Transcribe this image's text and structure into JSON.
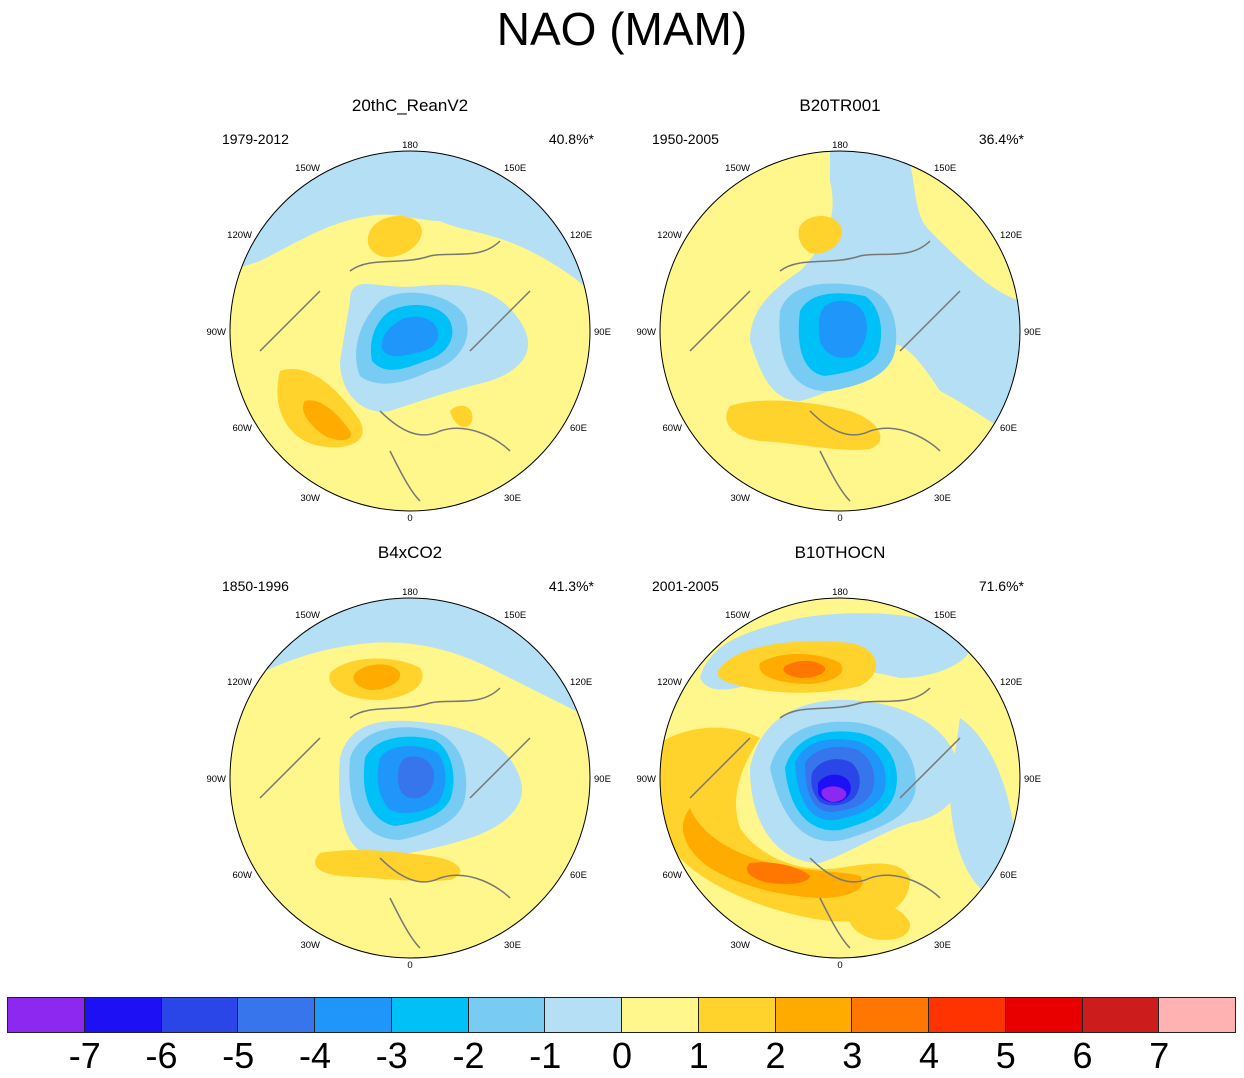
{
  "title": "NAO (MAM)",
  "panels": [
    {
      "name": "20thC_ReanV2",
      "years": "1979-2012",
      "percent": "40.8%*"
    },
    {
      "name": "B20TR001",
      "years": "1950-2005",
      "percent": "36.4%*"
    },
    {
      "name": "B4xCO2",
      "years": "1850-1996",
      "percent": "41.3%*"
    },
    {
      "name": "B10THOCN",
      "years": "2001-2005",
      "percent": "71.6%*"
    }
  ],
  "longitude_labels": {
    "lon_180": "180",
    "lon_150W": "150W",
    "lon_150E": "150E",
    "lon_120W": "120W",
    "lon_120E": "120E",
    "lon_90W": "90W",
    "lon_90E": "90E",
    "lon_60W": "60W",
    "lon_60E": "60E",
    "lon_30W": "30W",
    "lon_30E": "30E",
    "lon_0": "0"
  },
  "colorbar": {
    "labels": [
      "-7",
      "-6",
      "-5",
      "-4",
      "-3",
      "-2",
      "-1",
      "0",
      "1",
      "2",
      "3",
      "4",
      "5",
      "6",
      "7"
    ],
    "colors": [
      "#8c28f0",
      "#1e10f5",
      "#2b46e8",
      "#3675ec",
      "#1f96fa",
      "#00c0f8",
      "#78ccf4",
      "#b4dff4",
      "#fff68c",
      "#ffd22c",
      "#ffab00",
      "#ff7700",
      "#ff3300",
      "#e80000",
      "#cc1c1c",
      "#ffb2b2"
    ]
  }
}
